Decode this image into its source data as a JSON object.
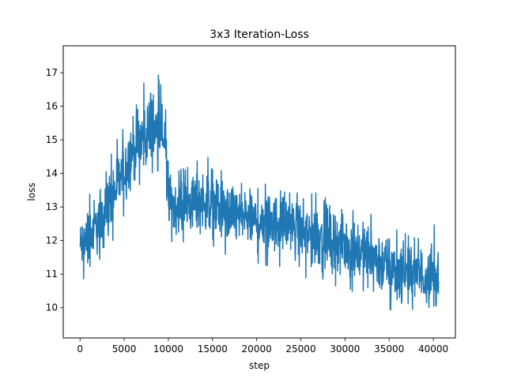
{
  "chart_data": {
    "type": "line",
    "title": "3x3 Iteration-Loss",
    "xlabel": "step",
    "ylabel": "loss",
    "xlim": [
      -1900,
      42500
    ],
    "ylim": [
      9.1,
      17.8
    ],
    "xticks": [
      0,
      5000,
      10000,
      15000,
      20000,
      25000,
      30000,
      35000,
      40000
    ],
    "yticks": [
      10,
      11,
      12,
      13,
      14,
      15,
      16,
      17
    ],
    "grid": false,
    "legend": "none",
    "series": [
      {
        "color": "#1f77b4",
        "trend": {
          "x": [
            0,
            1000,
            2000,
            3000,
            4000,
            5000,
            6000,
            7000,
            8000,
            9000,
            9600,
            10000,
            11000,
            12000,
            13000,
            14000,
            15000,
            16000,
            17000,
            18000,
            19000,
            20000,
            21000,
            22000,
            23000,
            24000,
            25000,
            26000,
            27000,
            28000,
            29000,
            30000,
            31000,
            32000,
            33000,
            34000,
            35000,
            36000,
            37000,
            38000,
            39000,
            40000,
            40600
          ],
          "center": [
            11.8,
            12.1,
            12.5,
            13.0,
            13.5,
            14.1,
            14.7,
            15.0,
            15.2,
            15.2,
            15.0,
            13.2,
            13.0,
            13.1,
            13.1,
            13.2,
            13.1,
            12.9,
            12.8,
            12.8,
            12.7,
            12.6,
            12.6,
            12.6,
            12.6,
            12.5,
            12.3,
            12.2,
            12.2,
            12.1,
            12.0,
            11.9,
            11.8,
            11.7,
            11.5,
            11.4,
            11.2,
            11.1,
            11.0,
            11.0,
            10.9,
            10.9,
            10.9
          ],
          "low": [
            10.8,
            10.9,
            11.2,
            11.6,
            12.1,
            12.7,
            13.3,
            13.6,
            13.8,
            14.0,
            14.3,
            12.0,
            11.8,
            11.9,
            11.9,
            12.0,
            11.8,
            11.6,
            11.5,
            11.4,
            11.3,
            11.3,
            11.2,
            11.2,
            11.2,
            11.1,
            10.9,
            10.8,
            10.7,
            10.7,
            10.6,
            10.5,
            10.4,
            10.3,
            10.1,
            10.0,
            9.9,
            9.8,
            9.9,
            9.9,
            9.8,
            9.7,
            9.5
          ],
          "high": [
            12.9,
            13.4,
            13.8,
            14.2,
            14.9,
            15.5,
            16.1,
            16.6,
            17.2,
            16.9,
            16.4,
            14.4,
            14.2,
            14.3,
            14.4,
            14.5,
            14.7,
            14.1,
            14.0,
            13.9,
            13.8,
            13.6,
            13.7,
            13.7,
            13.6,
            13.5,
            13.4,
            13.4,
            13.5,
            13.4,
            13.2,
            13.1,
            13.0,
            12.9,
            12.8,
            12.7,
            12.5,
            12.3,
            12.2,
            12.1,
            12.3,
            12.6,
            12.6
          ]
        },
        "samples_shown": 1400
      }
    ]
  }
}
